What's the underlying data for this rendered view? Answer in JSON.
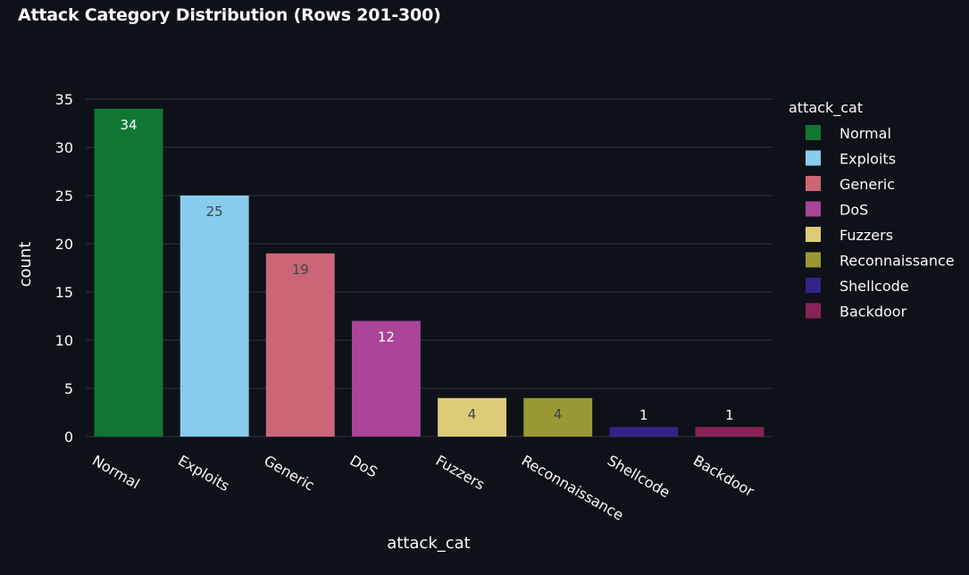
{
  "chart_data": {
    "type": "bar",
    "title": "Attack Category Distribution (Rows 201-300)",
    "xlabel": "attack_cat",
    "ylabel": "count",
    "categories": [
      "Normal",
      "Exploits",
      "Generic",
      "DoS",
      "Fuzzers",
      "Reconnaissance",
      "Shellcode",
      "Backdoor"
    ],
    "values": [
      34,
      25,
      19,
      12,
      4,
      4,
      1,
      1
    ],
    "colors": [
      "#117733",
      "#88ccee",
      "#cc6677",
      "#aa4499",
      "#ddcc77",
      "#999933",
      "#332288",
      "#882255"
    ],
    "data_label_colors": [
      "#ffffff",
      "#444444",
      "#444444",
      "#ffffff",
      "#444444",
      "#444444",
      "#ffffff",
      "#ffffff"
    ],
    "ylim": [
      0,
      35
    ],
    "yticks": [
      0,
      5,
      10,
      15,
      20,
      25,
      30,
      35
    ],
    "grid": true,
    "legend": {
      "title": "attack_cat",
      "placement": "right",
      "entries": [
        "Normal",
        "Exploits",
        "Generic",
        "DoS",
        "Fuzzers",
        "Reconnaissance",
        "Shellcode",
        "Backdoor"
      ]
    },
    "background_color": "#0e1117",
    "grid_color": "#31333f",
    "text_color": "#fafafa"
  }
}
